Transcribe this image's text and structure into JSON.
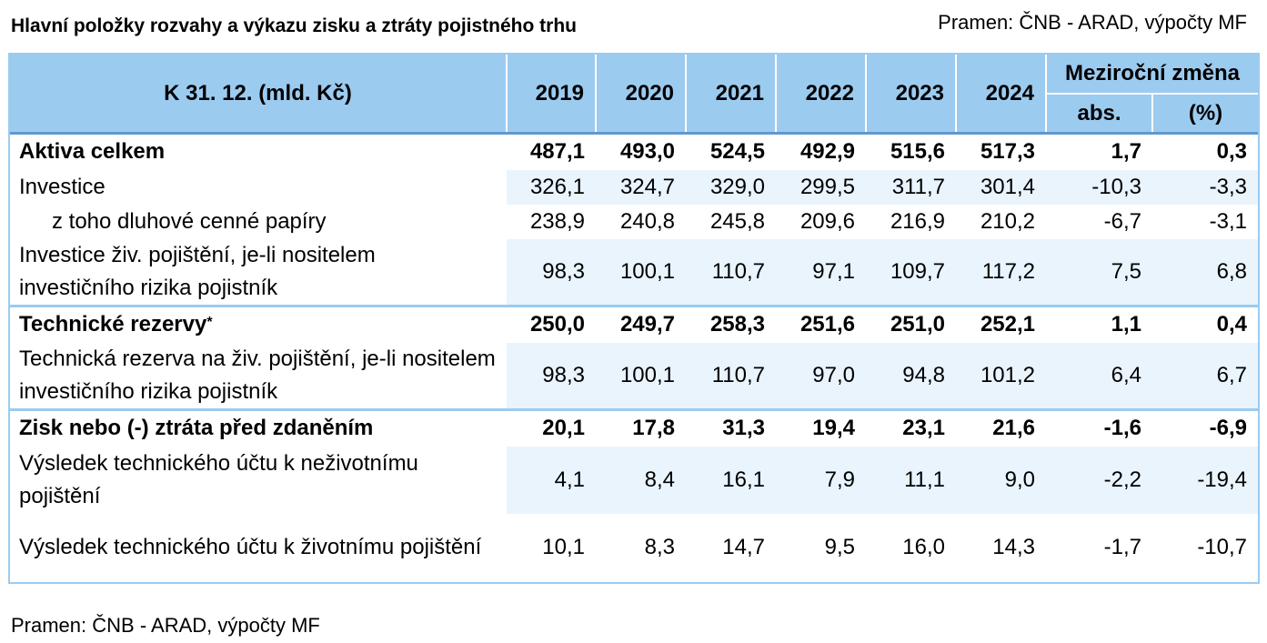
{
  "title": "Hlavní položky rozvahy a výkazu zisku a ztráty pojistného trhu",
  "source": "Pramen: ČNB - ARAD, výpočty MF",
  "header": {
    "col0": "K 31. 12. (mld. Kč)",
    "years": [
      "2019",
      "2020",
      "2021",
      "2022",
      "2023",
      "2024"
    ],
    "change": "Meziroční změna",
    "abs": "abs.",
    "pct": "(%)"
  },
  "rows": [
    {
      "label": "Aktiva celkem",
      "values": [
        "487,1",
        "493,0",
        "524,5",
        "492,9",
        "515,6",
        "517,3",
        "1,7",
        "0,3"
      ]
    },
    {
      "label": "Investice",
      "values": [
        "326,1",
        "324,7",
        "329,0",
        "299,5",
        "311,7",
        "301,4",
        "-10,3",
        "-3,3"
      ]
    },
    {
      "label": "z toho dluhové cenné papíry",
      "values": [
        "238,9",
        "240,8",
        "245,8",
        "209,6",
        "216,9",
        "210,2",
        "-6,7",
        "-3,1"
      ]
    },
    {
      "label": "Investice živ. pojištění, je-li nositelem investičního rizika pojistník",
      "values": [
        "98,3",
        "100,1",
        "110,7",
        "97,1",
        "109,7",
        "117,2",
        "7,5",
        "6,8"
      ]
    },
    {
      "label": "Technické rezervy",
      "sup": "*",
      "values": [
        "250,0",
        "249,7",
        "258,3",
        "251,6",
        "251,0",
        "252,1",
        "1,1",
        "0,4"
      ]
    },
    {
      "label": "Technická rezerva na živ. pojištění, je-li nositelem investičního rizika pojistník",
      "values": [
        "98,3",
        "100,1",
        "110,7",
        "97,0",
        "94,8",
        "101,2",
        "6,4",
        "6,7"
      ]
    },
    {
      "label": "Zisk nebo (-) ztráta před zdaněním",
      "values": [
        "20,1",
        "17,8",
        "31,3",
        "19,4",
        "23,1",
        "21,6",
        "-1,6",
        "-6,9"
      ]
    },
    {
      "label": "Výsledek technického účtu k neživotnímu pojištění",
      "values": [
        "4,1",
        "8,4",
        "16,1",
        "7,9",
        "11,1",
        "9,0",
        "-2,2",
        "-19,4"
      ]
    },
    {
      "label": "Výsledek technického účtu k životnímu pojištění",
      "values": [
        "10,1",
        "8,3",
        "14,7",
        "9,5",
        "16,0",
        "14,3",
        "-1,7",
        "-10,7"
      ]
    }
  ]
}
